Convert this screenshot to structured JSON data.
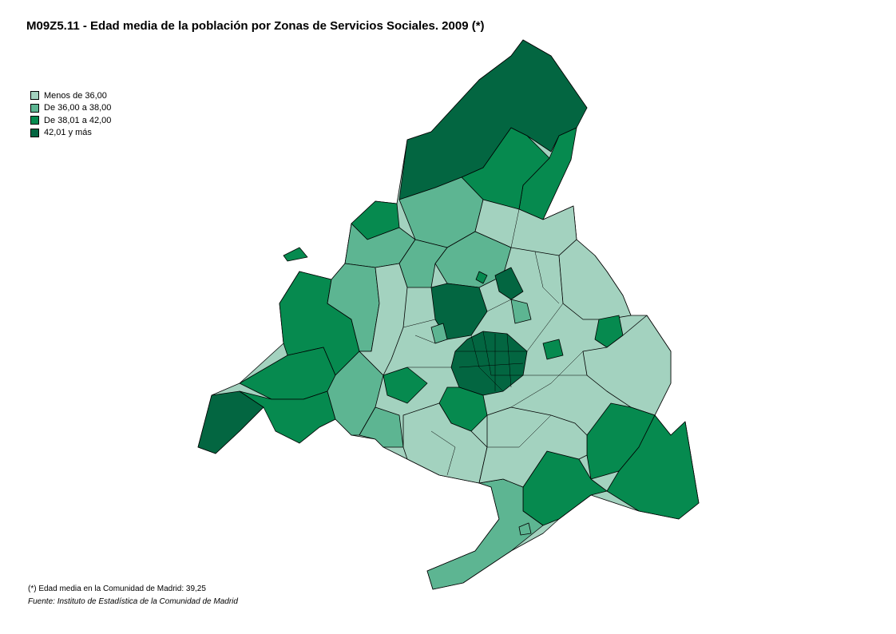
{
  "title": "M09Z5.11 - Edad media de la población por Zonas de Servicios Sociales. 2009 (*)",
  "legend": [
    {
      "label": "Menos de 36,00",
      "color": "#a3d2bf"
    },
    {
      "label": "De 36,00 a 38,00",
      "color": "#5db592"
    },
    {
      "label": "De 38,01 a 42,00",
      "color": "#068a4f"
    },
    {
      "label": "42,01 y más",
      "color": "#036641"
    }
  ],
  "note": "(*) Edad  media en la Comunidad de Madrid: 39,25",
  "source": "Fuente: Instituto de Estadística de la Comunidad de Madrid"
}
